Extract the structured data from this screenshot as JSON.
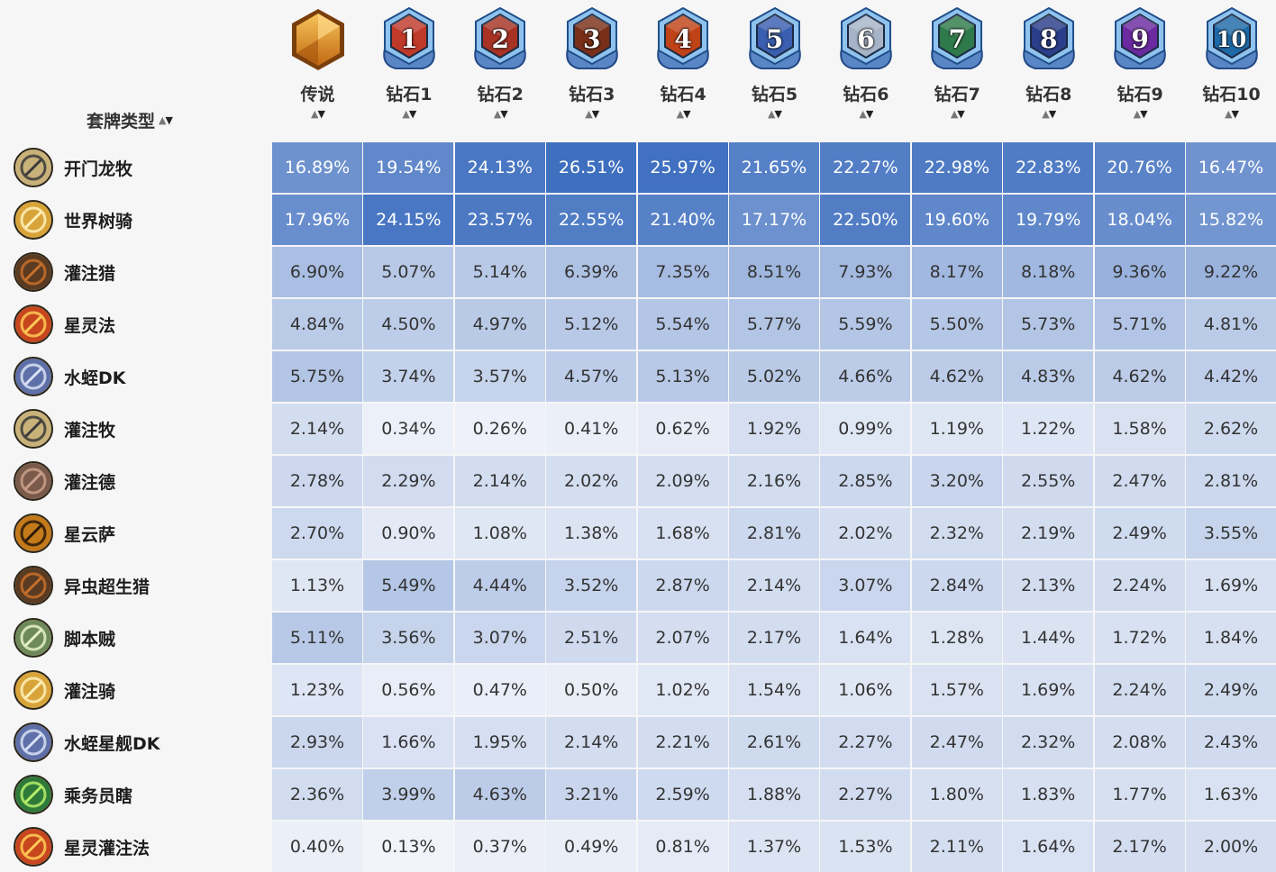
{
  "table": {
    "deck_column_label": "套牌类型",
    "ranks": [
      {
        "label": "传说",
        "badge": "",
        "icon": "legend-rank-icon"
      },
      {
        "label": "钻石1",
        "badge": "1",
        "icon": "diamond-rank-1-icon"
      },
      {
        "label": "钻石2",
        "badge": "2",
        "icon": "diamond-rank-2-icon"
      },
      {
        "label": "钻石3",
        "badge": "3",
        "icon": "diamond-rank-3-icon"
      },
      {
        "label": "钻石4",
        "badge": "4",
        "icon": "diamond-rank-4-icon"
      },
      {
        "label": "钻石5",
        "badge": "5",
        "icon": "diamond-rank-5-icon"
      },
      {
        "label": "钻石6",
        "badge": "6",
        "icon": "diamond-rank-6-icon"
      },
      {
        "label": "钻石7",
        "badge": "7",
        "icon": "diamond-rank-7-icon"
      },
      {
        "label": "钻石8",
        "badge": "8",
        "icon": "diamond-rank-8-icon"
      },
      {
        "label": "钻石9",
        "badge": "9",
        "icon": "diamond-rank-9-icon"
      },
      {
        "label": "钻石10",
        "badge": "10",
        "icon": "diamond-rank-10-icon"
      }
    ],
    "rows": [
      {
        "deck": "开门龙牧",
        "icon": "priest-class-icon",
        "values": [
          "16.89%",
          "19.54%",
          "24.13%",
          "26.51%",
          "25.97%",
          "21.65%",
          "22.27%",
          "22.98%",
          "22.83%",
          "20.76%",
          "16.47%"
        ]
      },
      {
        "deck": "世界树骑",
        "icon": "paladin-class-icon",
        "values": [
          "17.96%",
          "24.15%",
          "23.57%",
          "22.55%",
          "21.40%",
          "17.17%",
          "22.50%",
          "19.60%",
          "19.79%",
          "18.04%",
          "15.82%"
        ]
      },
      {
        "deck": "灌注猎",
        "icon": "hunter-class-icon",
        "values": [
          "6.90%",
          "5.07%",
          "5.14%",
          "6.39%",
          "7.35%",
          "8.51%",
          "7.93%",
          "8.17%",
          "8.18%",
          "9.36%",
          "9.22%"
        ]
      },
      {
        "deck": "星灵法",
        "icon": "mage-class-icon",
        "values": [
          "4.84%",
          "4.50%",
          "4.97%",
          "5.12%",
          "5.54%",
          "5.77%",
          "5.59%",
          "5.50%",
          "5.73%",
          "5.71%",
          "4.81%"
        ]
      },
      {
        "deck": "水蛭DK",
        "icon": "death-knight-class-icon",
        "values": [
          "5.75%",
          "3.74%",
          "3.57%",
          "4.57%",
          "5.13%",
          "5.02%",
          "4.66%",
          "4.62%",
          "4.83%",
          "4.62%",
          "4.42%"
        ]
      },
      {
        "deck": "灌注牧",
        "icon": "priest-class-icon",
        "values": [
          "2.14%",
          "0.34%",
          "0.26%",
          "0.41%",
          "0.62%",
          "1.92%",
          "0.99%",
          "1.19%",
          "1.22%",
          "1.58%",
          "2.62%"
        ]
      },
      {
        "deck": "灌注德",
        "icon": "druid-class-icon",
        "values": [
          "2.78%",
          "2.29%",
          "2.14%",
          "2.02%",
          "2.09%",
          "2.16%",
          "2.85%",
          "3.20%",
          "2.55%",
          "2.47%",
          "2.81%"
        ]
      },
      {
        "deck": "星云萨",
        "icon": "shaman-class-icon",
        "values": [
          "2.70%",
          "0.90%",
          "1.08%",
          "1.38%",
          "1.68%",
          "2.81%",
          "2.02%",
          "2.32%",
          "2.19%",
          "2.49%",
          "3.55%"
        ]
      },
      {
        "deck": "异虫超生猎",
        "icon": "hunter-class-icon",
        "values": [
          "1.13%",
          "5.49%",
          "4.44%",
          "3.52%",
          "2.87%",
          "2.14%",
          "3.07%",
          "2.84%",
          "2.13%",
          "2.24%",
          "1.69%"
        ]
      },
      {
        "deck": "脚本贼",
        "icon": "rogue-class-icon",
        "values": [
          "5.11%",
          "3.56%",
          "3.07%",
          "2.51%",
          "2.07%",
          "2.17%",
          "1.64%",
          "1.28%",
          "1.44%",
          "1.72%",
          "1.84%"
        ]
      },
      {
        "deck": "灌注骑",
        "icon": "paladin-class-icon",
        "values": [
          "1.23%",
          "0.56%",
          "0.47%",
          "0.50%",
          "1.02%",
          "1.54%",
          "1.06%",
          "1.57%",
          "1.69%",
          "2.24%",
          "2.49%"
        ]
      },
      {
        "deck": "水蛭星舰DK",
        "icon": "death-knight-class-icon",
        "values": [
          "2.93%",
          "1.66%",
          "1.95%",
          "2.14%",
          "2.21%",
          "2.61%",
          "2.27%",
          "2.47%",
          "2.32%",
          "2.08%",
          "2.43%"
        ]
      },
      {
        "deck": "乘务员瞎",
        "icon": "demon-hunter-class-icon",
        "values": [
          "2.36%",
          "3.99%",
          "4.63%",
          "3.21%",
          "2.59%",
          "1.88%",
          "2.27%",
          "1.80%",
          "1.83%",
          "1.77%",
          "1.63%"
        ]
      },
      {
        "deck": "星灵灌注法",
        "icon": "mage-class-icon",
        "values": [
          "0.40%",
          "0.13%",
          "0.37%",
          "0.49%",
          "0.81%",
          "1.37%",
          "1.53%",
          "2.11%",
          "1.64%",
          "2.17%",
          "2.00%"
        ]
      }
    ]
  },
  "sort_glyph": "▲▼",
  "colors": {
    "heat_high": "#3f6fbf",
    "heat_low": "#f7f8fc",
    "priest": "#c9b27a",
    "paladin": "#d8a43a",
    "hunter": "#5a3b22",
    "mage": "#c8461e",
    "death_knight": "#5f6fa8",
    "druid": "#7a5a4a",
    "shaman": "#c47a1a",
    "rogue": "#6f8a5a",
    "demon_hunter": "#2f7a3a"
  }
}
